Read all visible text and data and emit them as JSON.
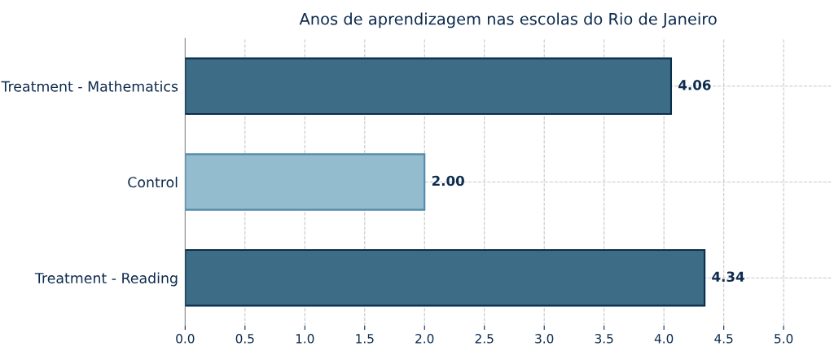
{
  "chart_data": {
    "type": "bar",
    "orientation": "horizontal",
    "title": "Anos de aprendizagem nas escolas do Rio de Janeiro",
    "categories": [
      "Treatment - Mathematics",
      "Control",
      "Treatment - Reading"
    ],
    "values": [
      4.06,
      2.0,
      4.34
    ],
    "value_labels": [
      "4.06",
      "2.00",
      "4.34"
    ],
    "colors": [
      "#3d6c86",
      "#94bccf",
      "#3d6c86"
    ],
    "xlim": [
      0,
      5.4
    ],
    "xticks": [
      {
        "value": 0,
        "label": "0.0"
      },
      0.5,
      {
        "value": 1,
        "label": "1.0"
      },
      1.5,
      {
        "value": 2,
        "label": "2.0"
      },
      2.5,
      {
        "value": 3,
        "label": "3.0"
      },
      3.5,
      {
        "value": 4,
        "label": "4.0"
      },
      4.5,
      {
        "value": 5,
        "label": "5.0"
      }
    ],
    "grid": true,
    "line_style": "dashed"
  }
}
